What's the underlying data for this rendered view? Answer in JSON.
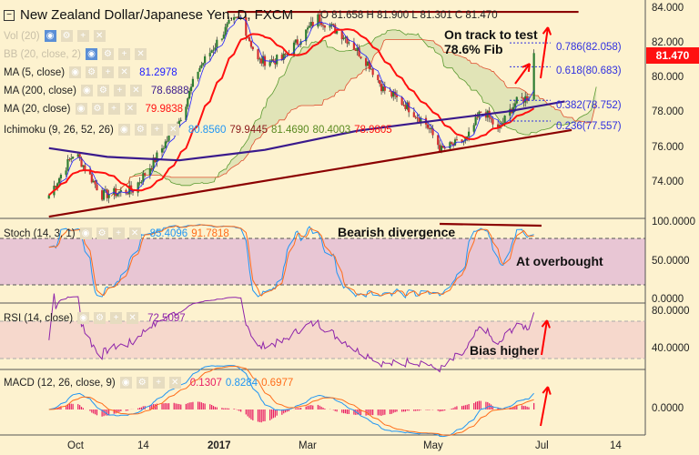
{
  "header": {
    "title": "New Zealand Dollar/Japanese Yen, D, FXCM",
    "ohlc": "O 81.658 H 81.900 L 81.301 C 81.470"
  },
  "legend": {
    "vol": {
      "label": "Vol (20)"
    },
    "bb": {
      "label": "BB (20, close, 2)"
    },
    "ma5": {
      "label": "MA (5, close)",
      "value": "81.2978",
      "color": "#2020ff"
    },
    "ma200": {
      "label": "MA (200, close)",
      "value": "78.6888",
      "color": "#3a1a8c"
    },
    "ma20": {
      "label": "MA (20, close)",
      "value": "79.9838",
      "color": "#ff1010"
    },
    "ichimoku": {
      "label": "Ichimoku (9, 26, 52, 26)",
      "values": [
        "80.8560",
        "79.9445",
        "81.4690",
        "80.4003",
        "78.9805"
      ],
      "colors": [
        "#2196f3",
        "#8b1a1a",
        "#5a8a20",
        "#5a8a20",
        "#ff1010"
      ]
    },
    "stoch": {
      "label": "Stoch (14, 3, 1)",
      "values": [
        "85.4096",
        "91.7818"
      ],
      "colors": [
        "#2196f3",
        "#ff6d1a"
      ]
    },
    "rsi": {
      "label": "RSI (14, close)",
      "value": "72.5097",
      "color": "#8e24aa"
    },
    "macd": {
      "label": "MACD (12, 26, close, 9)",
      "values": [
        "0.1307",
        "0.8284",
        "0.6977"
      ],
      "colors": [
        "#e91e63",
        "#2196f3",
        "#ff6d1a"
      ]
    }
  },
  "price_tag": "81.470",
  "annotations": {
    "fib_target": "On track to test\n78.6% Fib",
    "divergence": "Bearish divergence",
    "overbought": "At overbought",
    "bias": "Bias higher"
  },
  "fib_levels": [
    {
      "label": "0.786(82.058)",
      "price": 82.058
    },
    {
      "label": "0.618(80.683)",
      "price": 80.683
    },
    {
      "label": "0.382(78.752)",
      "price": 78.752
    },
    {
      "label": "0.236(77.557)",
      "price": 77.557
    }
  ],
  "axes": {
    "price_ticks": [
      "84.000",
      "82.000",
      "80.000",
      "78.000",
      "76.000",
      "74.000"
    ],
    "stoch_ticks": [
      "100.0000",
      "50.0000",
      "0.0000"
    ],
    "rsi_ticks": [
      "80.0000",
      "40.0000"
    ],
    "macd_ticks": [
      "0.0000"
    ],
    "time_ticks": [
      "Oct",
      "14",
      "2017",
      "Mar",
      "May",
      "Jul",
      "14"
    ]
  },
  "chart_data": {
    "type": "candlestick",
    "title": "New Zealand Dollar/Japanese Yen, D, FXCM",
    "ylim": [
      72,
      84.5
    ],
    "colors": {
      "up": "#2e7d32",
      "down": "#d32f2f"
    },
    "price_path": [
      {
        "date": "2016-09-16",
        "close": 73.3
      },
      {
        "date": "2016-10-01",
        "close": 75.8
      },
      {
        "date": "2016-10-17",
        "close": 73.3
      },
      {
        "date": "2016-11-04",
        "close": 73.6
      },
      {
        "date": "2016-11-16",
        "close": 75.2
      },
      {
        "date": "2016-12-01",
        "close": 77.6
      },
      {
        "date": "2016-12-12",
        "close": 80.5
      },
      {
        "date": "2016-12-30",
        "close": 83.1
      },
      {
        "date": "2017-01-06",
        "close": 83.5
      },
      {
        "date": "2017-01-16",
        "close": 81.0
      },
      {
        "date": "2017-01-30",
        "close": 81.1
      },
      {
        "date": "2017-02-20",
        "close": 83.5
      },
      {
        "date": "2017-03-08",
        "close": 82.4
      },
      {
        "date": "2017-03-22",
        "close": 80.8
      },
      {
        "date": "2017-03-30",
        "close": 79.4
      },
      {
        "date": "2017-04-12",
        "close": 78.5
      },
      {
        "date": "2017-04-24",
        "close": 77.4
      },
      {
        "date": "2017-05-03",
        "close": 75.9
      },
      {
        "date": "2017-05-18",
        "close": 76.5
      },
      {
        "date": "2017-05-27",
        "close": 78.3
      },
      {
        "date": "2017-06-05",
        "close": 77.0
      },
      {
        "date": "2017-06-15",
        "close": 78.6
      },
      {
        "date": "2017-06-30",
        "close": 79.3
      },
      {
        "date": "2017-07-14",
        "close": 81.47
      }
    ],
    "ma200_path": [
      {
        "date": "2016-09-16",
        "close": 76.0
      },
      {
        "date": "2016-10-20",
        "close": 75.5
      },
      {
        "date": "2016-12-01",
        "close": 75.3
      },
      {
        "date": "2017-01-20",
        "close": 75.9
      },
      {
        "date": "2017-03-15",
        "close": 77.0
      },
      {
        "date": "2017-05-01",
        "close": 77.6
      },
      {
        "date": "2017-06-10",
        "close": 78.1
      },
      {
        "date": "2017-07-14",
        "close": 78.69
      }
    ],
    "trendline": [
      {
        "date": "2016-09-16",
        "price": 72.06
      },
      {
        "date": "2017-07-18",
        "price": 77.04
      }
    ],
    "resistance": {
      "price": 83.84,
      "from": "2016-12-29",
      "to": "2017-07-22"
    }
  }
}
